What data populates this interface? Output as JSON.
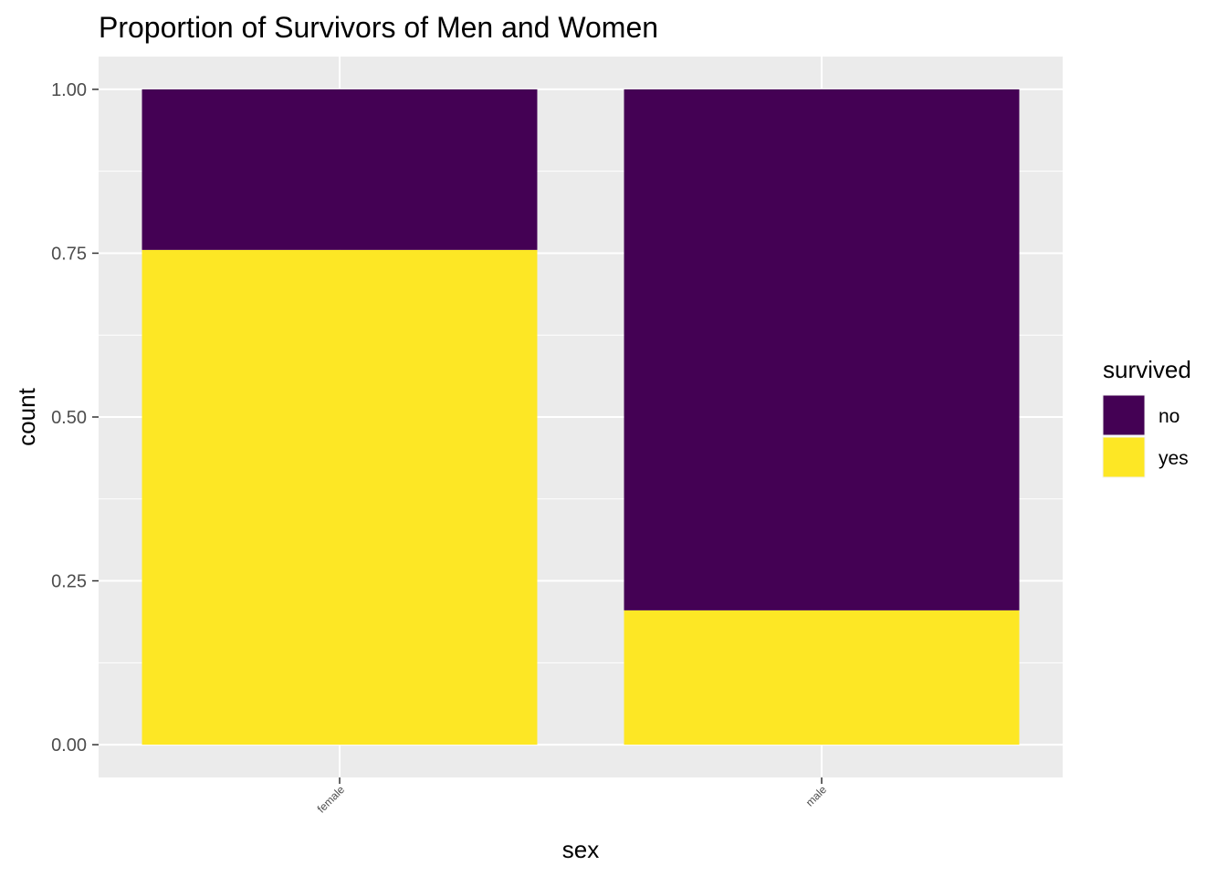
{
  "chart_data": {
    "type": "bar",
    "stacked": true,
    "title": "Proportion of Survivors of Men and Women",
    "xlabel": "sex",
    "ylabel": "count",
    "categories": [
      "female",
      "male"
    ],
    "series": [
      {
        "name": "no",
        "color": "#440154",
        "values": [
          0.245,
          0.795
        ]
      },
      {
        "name": "yes",
        "color": "#FDE725",
        "values": [
          0.755,
          0.205
        ]
      }
    ],
    "ylim": [
      -0.05,
      1.05
    ],
    "y_ticks": [
      0.0,
      0.25,
      0.5,
      0.75,
      1.0
    ],
    "y_tick_labels": [
      "0.00",
      "0.25",
      "0.50",
      "0.75",
      "1.00"
    ],
    "legend": {
      "title": "survived",
      "position": "right",
      "items": [
        {
          "label": "no",
          "color": "#440154"
        },
        {
          "label": "yes",
          "color": "#FDE725"
        }
      ]
    },
    "panel_background": "#EBEBEB",
    "grid_color": "#FFFFFF",
    "grid": true
  }
}
